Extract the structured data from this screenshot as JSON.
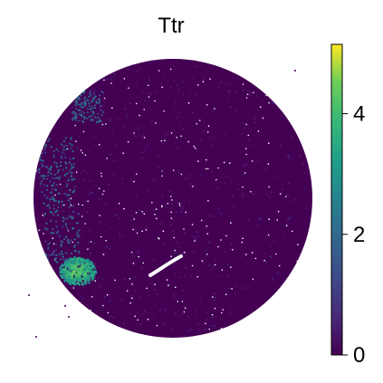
{
  "chart_data": {
    "type": "scatter",
    "title": "Ttr",
    "xlabel": "",
    "ylabel": "",
    "description_free": true,
    "colormap": "viridis",
    "colorbar": {
      "vmin": 0,
      "vmax": 5.15,
      "ticks": [
        0,
        2,
        4
      ],
      "tick_labels": [
        "0",
        "2",
        "4"
      ]
    },
    "spots": {
      "shape": "circle",
      "background_value": 0.2,
      "regions": [
        {
          "name": "high",
          "value_range": [
            4.0,
            5.1
          ]
        },
        {
          "name": "mid-left",
          "value_range": [
            1.0,
            2.8
          ]
        },
        {
          "name": "upper-left",
          "value_range": [
            1.2,
            2.5
          ]
        }
      ]
    },
    "grid": false
  }
}
